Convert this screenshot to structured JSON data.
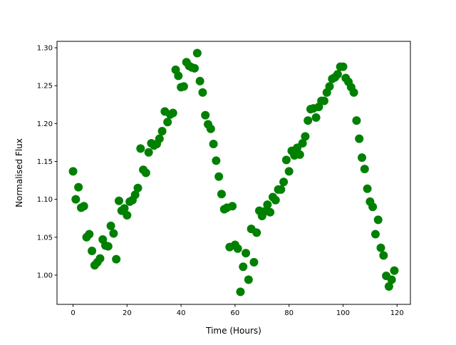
{
  "chart_data": {
    "type": "scatter",
    "title": "",
    "xlabel": "Time (Hours)",
    "ylabel": "Normalised Flux",
    "xlim": [
      -5.95,
      124.95
    ],
    "ylim": [
      0.9614,
      1.3085
    ],
    "xticks": [
      0,
      20,
      40,
      60,
      80,
      100,
      120
    ],
    "yticks": [
      1.0,
      1.05,
      1.1,
      1.15,
      1.2,
      1.25,
      1.3
    ],
    "xtick_labels": [
      "0",
      "20",
      "40",
      "60",
      "80",
      "100",
      "120"
    ],
    "ytick_labels": [
      "1.00",
      "1.05",
      "1.10",
      "1.15",
      "1.20",
      "1.25",
      "1.30"
    ],
    "grid": false,
    "marker_color": "#008000",
    "marker": "circle",
    "series": [
      {
        "x": [
          0,
          1,
          2,
          3,
          4,
          5,
          6,
          7,
          8,
          9,
          10,
          11,
          12,
          13,
          14,
          15,
          16,
          17,
          18,
          19,
          20,
          21,
          22,
          23,
          24,
          25,
          26,
          27,
          28,
          29,
          30,
          31,
          32,
          33,
          34,
          35,
          36,
          37,
          38,
          39,
          40,
          41,
          42,
          43,
          44,
          45,
          46,
          47,
          48,
          49,
          50,
          51,
          52,
          53,
          54,
          55,
          56,
          57,
          58,
          59,
          60,
          61,
          62,
          63,
          64,
          65,
          66,
          67,
          68,
          69,
          70,
          71,
          72,
          73,
          74,
          75,
          76,
          77,
          78,
          79,
          80,
          81,
          82,
          83,
          84,
          85,
          86,
          87,
          88,
          89,
          90,
          91,
          92,
          93,
          94,
          95,
          96,
          97,
          98,
          99,
          100,
          101,
          102,
          103,
          104,
          105,
          106,
          107,
          108,
          109,
          110,
          111,
          112,
          113,
          114,
          115,
          116,
          117,
          118,
          119
        ],
        "y": [
          1.137,
          1.1,
          1.116,
          1.089,
          1.091,
          1.05,
          1.054,
          1.032,
          1.013,
          1.017,
          1.022,
          1.047,
          1.039,
          1.038,
          1.065,
          1.055,
          1.021,
          1.098,
          1.085,
          1.088,
          1.079,
          1.097,
          1.099,
          1.106,
          1.115,
          1.167,
          1.139,
          1.135,
          1.162,
          1.174,
          1.171,
          1.173,
          1.18,
          1.19,
          1.216,
          1.202,
          1.212,
          1.214,
          1.271,
          1.263,
          1.248,
          1.249,
          1.281,
          1.276,
          1.274,
          1.273,
          1.293,
          1.256,
          1.241,
          1.211,
          1.199,
          1.193,
          1.173,
          1.151,
          1.13,
          1.107,
          1.087,
          1.089,
          1.037,
          1.091,
          1.04,
          1.035,
          0.978,
          1.011,
          1.029,
          0.994,
          1.061,
          1.017,
          1.056,
          1.085,
          1.078,
          1.084,
          1.093,
          1.083,
          1.103,
          1.099,
          1.113,
          1.113,
          1.123,
          1.152,
          1.137,
          1.164,
          1.158,
          1.168,
          1.159,
          1.174,
          1.183,
          1.204,
          1.219,
          1.22,
          1.208,
          1.222,
          1.23,
          1.23,
          1.241,
          1.249,
          1.259,
          1.261,
          1.265,
          1.275,
          1.275,
          1.26,
          1.255,
          1.248,
          1.241,
          1.204,
          1.18,
          1.155,
          1.14,
          1.114,
          1.097,
          1.09,
          1.054,
          1.073,
          1.036,
          1.026,
          0.999,
          0.985,
          0.994,
          1.006
        ]
      }
    ]
  }
}
